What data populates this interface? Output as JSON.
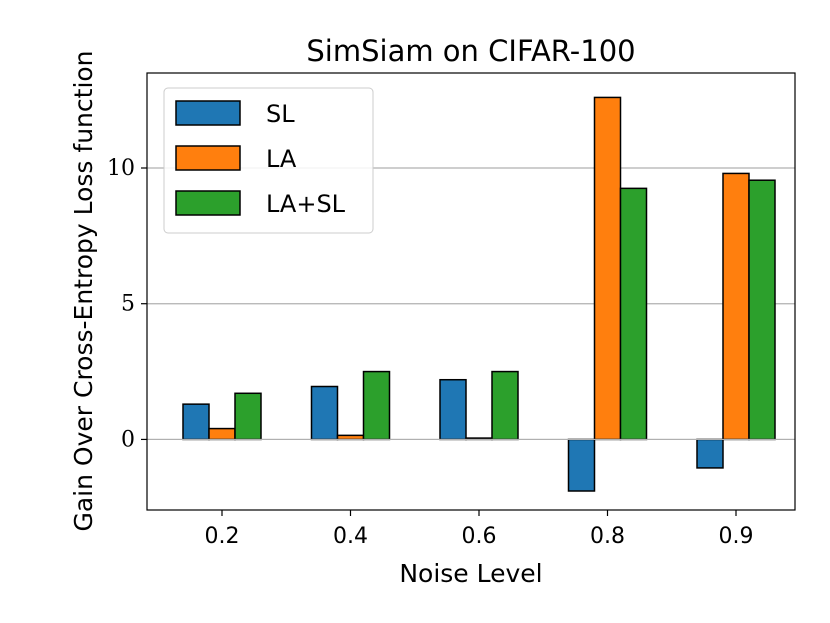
{
  "chart_data": {
    "type": "bar",
    "title": "SimSiam on CIFAR-100",
    "xlabel": "Noise Level",
    "ylabel": "Gain Over Cross-Entropy Loss function",
    "categories": [
      "0.2",
      "0.4",
      "0.6",
      "0.8",
      "0.9"
    ],
    "series": [
      {
        "name": "SL",
        "color": "#1f77b4",
        "values": [
          1.3,
          1.95,
          2.2,
          -1.9,
          -1.05
        ]
      },
      {
        "name": "LA",
        "color": "#ff7f0e",
        "values": [
          0.4,
          0.15,
          0.05,
          12.6,
          9.8
        ]
      },
      {
        "name": "LA+SL",
        "color": "#2ca02c",
        "values": [
          1.7,
          2.5,
          2.5,
          9.25,
          9.55
        ]
      }
    ],
    "ylim": [
      -2.6,
      13.5
    ],
    "yticks": [
      0,
      5,
      10
    ],
    "ytick_labels": [
      "0",
      "5",
      "10"
    ],
    "grid": "y",
    "legend": "top-left"
  }
}
